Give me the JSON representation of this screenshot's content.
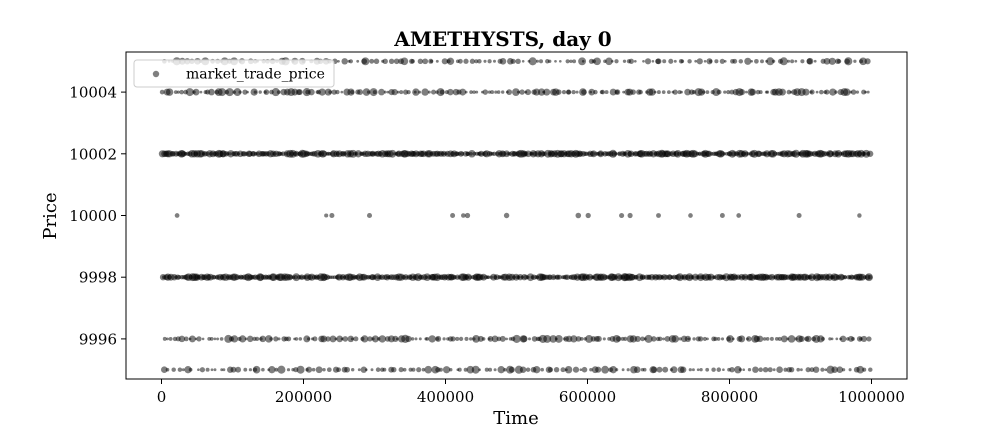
{
  "chart_data": {
    "type": "scatter",
    "title": "AMETHYSTS, day 0",
    "xlabel": "Time",
    "ylabel": "Price",
    "xlim": [
      -50000,
      1050000
    ],
    "ylim": [
      9994.7,
      10005.3
    ],
    "x_ticks": [
      {
        "value": 0,
        "label": "0"
      },
      {
        "value": 200000,
        "label": "200000"
      },
      {
        "value": 400000,
        "label": "400000"
      },
      {
        "value": 600000,
        "label": "600000"
      },
      {
        "value": 800000,
        "label": "800000"
      },
      {
        "value": 1000000,
        "label": "1000000"
      }
    ],
    "y_ticks": [
      {
        "value": 9996,
        "label": "9996"
      },
      {
        "value": 9998,
        "label": "9998"
      },
      {
        "value": 10000,
        "label": "10000"
      },
      {
        "value": 10002,
        "label": "10002"
      },
      {
        "value": 10004,
        "label": "10004"
      }
    ],
    "grid": false,
    "legend_position": "top-left",
    "marker_color": "#000000",
    "marker_opacity": 0.5,
    "series": [
      {
        "name": "market_trade_price",
        "x_range": [
          0,
          1000000
        ],
        "price_levels": [
          {
            "price": 9995,
            "count": 150,
            "density": "medium"
          },
          {
            "price": 9996,
            "count": 190,
            "density": "medium"
          },
          {
            "price": 9998,
            "count": 380,
            "density": "high"
          },
          {
            "price": 10000,
            "density": "sparse",
            "times": [
              22000,
              232000,
              240000,
              293000,
              410000,
              425000,
              431000,
              486000,
              587000,
              601000,
              648000,
              660000,
              700000,
              745000,
              790000,
              813000,
              898000,
              983000
            ]
          },
          {
            "price": 10002,
            "count": 380,
            "density": "high"
          },
          {
            "price": 10004,
            "count": 190,
            "density": "medium"
          },
          {
            "price": 10005,
            "count": 150,
            "density": "medium"
          }
        ]
      }
    ]
  }
}
